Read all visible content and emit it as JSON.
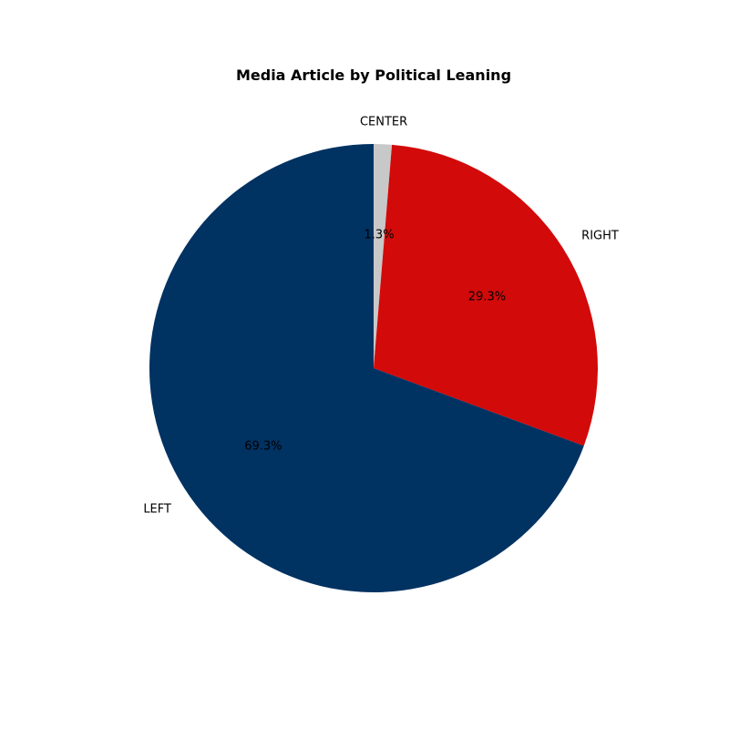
{
  "chart_data": {
    "type": "pie",
    "title": "Media Article by Political Leaning",
    "slices": [
      {
        "label": "CENTER",
        "value": 1.3,
        "pct_label": "1.3%",
        "color": "#c8c8c8"
      },
      {
        "label": "RIGHT",
        "value": 29.3,
        "pct_label": "29.3%",
        "color": "#d20a0a"
      },
      {
        "label": "LEFT",
        "value": 69.3,
        "pct_label": "69.3%",
        "color": "#003262"
      }
    ],
    "start_angle_deg": 90,
    "direction": "clockwise"
  }
}
